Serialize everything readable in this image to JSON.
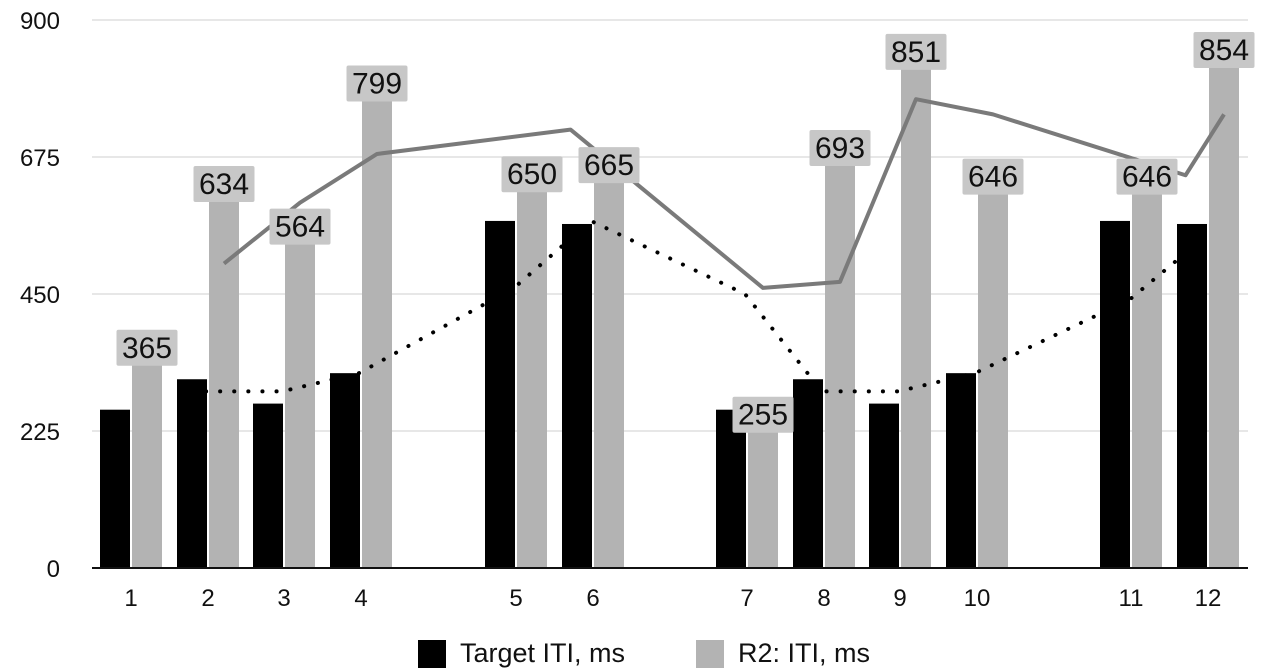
{
  "chart_data": {
    "type": "bar",
    "categories": [
      "1",
      "2",
      "3",
      "4",
      "5",
      "6",
      "7",
      "8",
      "9",
      "10",
      "11",
      "12"
    ],
    "series": [
      {
        "name": "Target ITI, ms",
        "color": "#000000",
        "values": [
          260,
          310,
          270,
          320,
          570,
          565,
          260,
          310,
          270,
          320,
          570,
          565
        ]
      },
      {
        "name": "R2: ITI, ms",
        "color": "#b3b3b3",
        "values": [
          365,
          634,
          564,
          799,
          650,
          665,
          255,
          693,
          851,
          646,
          646,
          854
        ]
      }
    ],
    "data_labels": [
      "365",
      "634",
      "564",
      "799",
      "650",
      "665",
      "255",
      "693",
      "851",
      "646",
      "646",
      "854"
    ],
    "lines": [
      {
        "style": "solid",
        "color": "#7a7a7a",
        "values": [
          null,
          500,
          600,
          680,
          null,
          null,
          460,
          470,
          770,
          745,
          null,
          745
        ],
        "extra_points": [
          {
            "x": "5.5",
            "y": 720
          },
          {
            "x": "11.5",
            "y": 645
          }
        ]
      },
      {
        "style": "dotted",
        "color": "#000000",
        "values": [
          null,
          290,
          290,
          320,
          460,
          570,
          450,
          290,
          290,
          320,
          440,
          545
        ]
      }
    ],
    "yticks": [
      "0",
      "225",
      "450",
      "675",
      "900"
    ],
    "ylim": [
      0,
      900
    ],
    "grid": true,
    "legend_position": "bottom"
  },
  "legend": {
    "target_label": "Target ITI, ms",
    "r2_label": "R2: ITI, ms"
  }
}
